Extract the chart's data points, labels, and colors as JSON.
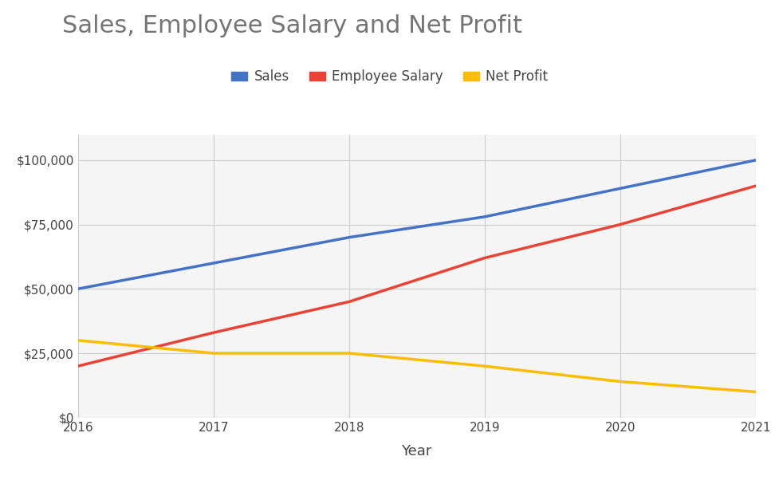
{
  "title": "Sales, Employee Salary and Net Profit",
  "xlabel": "Year",
  "years": [
    2016,
    2017,
    2018,
    2019,
    2020,
    2021
  ],
  "sales": [
    50000,
    60000,
    70000,
    78000,
    89000,
    100000
  ],
  "employee_salary": [
    20000,
    33000,
    45000,
    62000,
    75000,
    90000
  ],
  "net_profit": [
    30000,
    25000,
    25000,
    20000,
    14000,
    10000
  ],
  "sales_color": "#4472C4",
  "salary_color": "#EA4335",
  "profit_color": "#FBBC04",
  "background_color": "#ffffff",
  "plot_bg_color": "#f5f5f5",
  "grid_color": "#cccccc",
  "title_color": "#757575",
  "line_width": 2.5,
  "ylim": [
    0,
    110000
  ],
  "yticks": [
    0,
    25000,
    50000,
    75000,
    100000
  ],
  "legend_labels": [
    "Sales",
    "Employee Salary",
    "Net Profit"
  ],
  "title_fontsize": 22,
  "axis_label_fontsize": 13,
  "tick_fontsize": 11,
  "legend_fontsize": 12
}
